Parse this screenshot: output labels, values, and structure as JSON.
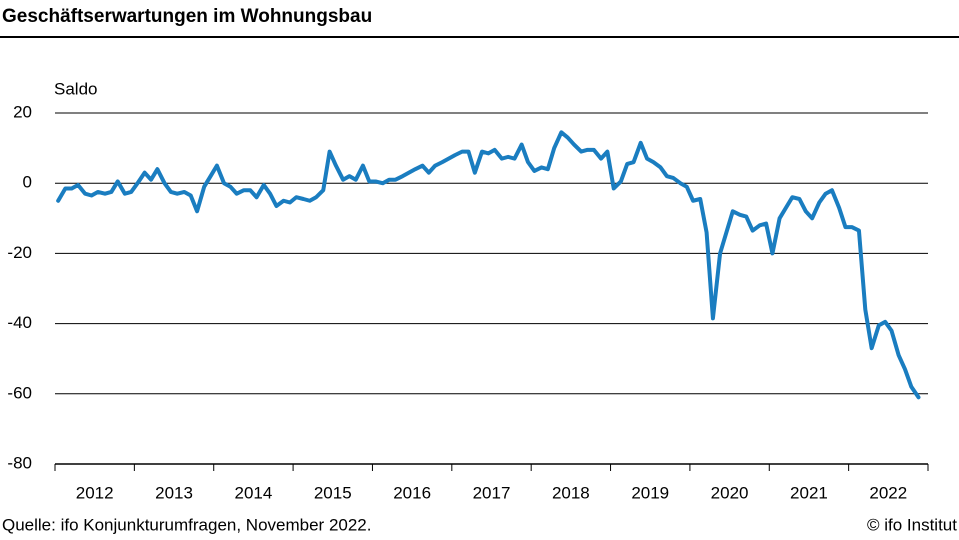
{
  "chart_data": {
    "type": "line",
    "title": "Geschäftserwartungen im Wohnungsbau",
    "y_axis_label": "Saldo",
    "source": "Quelle: ifo Konjunkturumfragen, November 2022.",
    "credit": "© ifo Institut",
    "xlim": [
      2012,
      2023
    ],
    "xticks": [
      2012,
      2013,
      2014,
      2015,
      2016,
      2017,
      2018,
      2019,
      2020,
      2021,
      2022,
      2023
    ],
    "year_labels": [
      2012,
      2013,
      2014,
      2015,
      2016,
      2017,
      2018,
      2019,
      2020,
      2021,
      2022
    ],
    "ylim": [
      -80,
      20
    ],
    "yticks": [
      20,
      0,
      -20,
      -40,
      -60,
      -80
    ],
    "grid": true,
    "x": [
      2012.04,
      2012.13,
      2012.21,
      2012.29,
      2012.38,
      2012.46,
      2012.54,
      2012.63,
      2012.71,
      2012.79,
      2012.88,
      2012.96,
      2013.04,
      2013.13,
      2013.21,
      2013.29,
      2013.38,
      2013.46,
      2013.54,
      2013.63,
      2013.71,
      2013.79,
      2013.88,
      2013.96,
      2014.04,
      2014.13,
      2014.21,
      2014.29,
      2014.38,
      2014.46,
      2014.54,
      2014.63,
      2014.71,
      2014.79,
      2014.88,
      2014.96,
      2015.04,
      2015.13,
      2015.21,
      2015.29,
      2015.38,
      2015.46,
      2015.54,
      2015.63,
      2015.71,
      2015.79,
      2015.88,
      2015.96,
      2016.04,
      2016.13,
      2016.21,
      2016.29,
      2016.38,
      2016.46,
      2016.54,
      2016.63,
      2016.71,
      2016.79,
      2016.88,
      2016.96,
      2017.04,
      2017.13,
      2017.21,
      2017.29,
      2017.38,
      2017.46,
      2017.54,
      2017.63,
      2017.71,
      2017.79,
      2017.88,
      2017.96,
      2018.04,
      2018.13,
      2018.21,
      2018.29,
      2018.38,
      2018.46,
      2018.54,
      2018.63,
      2018.71,
      2018.79,
      2018.88,
      2018.96,
      2019.04,
      2019.13,
      2019.21,
      2019.29,
      2019.38,
      2019.46,
      2019.54,
      2019.63,
      2019.71,
      2019.79,
      2019.88,
      2019.96,
      2020.04,
      2020.13,
      2020.21,
      2020.29,
      2020.38,
      2020.46,
      2020.54,
      2020.63,
      2020.71,
      2020.79,
      2020.88,
      2020.96,
      2021.04,
      2021.13,
      2021.21,
      2021.29,
      2021.38,
      2021.46,
      2021.54,
      2021.63,
      2021.71,
      2021.79,
      2021.88,
      2021.96,
      2022.04,
      2022.13,
      2022.21,
      2022.29,
      2022.38,
      2022.46,
      2022.54,
      2022.63,
      2022.71,
      2022.79,
      2022.88
    ],
    "series": [
      {
        "color": "#1a7dc0",
        "values": [
          -5,
          -1.5,
          -1.5,
          -0.5,
          -3,
          -3.5,
          -2.5,
          -3,
          -2.5,
          0.5,
          -3,
          -2.5,
          0,
          3,
          1,
          4,
          0,
          -2.5,
          -3,
          -2.5,
          -3.5,
          -8,
          -1,
          2,
          5,
          0,
          -1,
          -3,
          -2,
          -2,
          -4,
          -0.5,
          -3,
          -6.5,
          -5,
          -5.5,
          -4,
          -4.5,
          -5,
          -4,
          -2,
          9,
          5,
          1,
          2,
          1,
          5,
          0.5,
          0.5,
          0,
          1,
          1,
          2,
          3,
          4,
          5,
          3,
          5,
          6,
          7,
          8,
          9,
          9,
          3,
          9,
          8.5,
          9.5,
          7,
          7.5,
          7,
          11,
          6,
          3.5,
          4.5,
          4,
          10,
          14.5,
          13,
          11,
          9,
          9.5,
          9.5,
          7,
          9,
          -1.5,
          0.5,
          5.5,
          6,
          11.5,
          7,
          6,
          4.5,
          2,
          1.5,
          0,
          -1,
          -5,
          -4.5,
          -14,
          -38.5,
          -20,
          -14,
          -8,
          -9,
          -9.5,
          -13.5,
          -12,
          -11.5,
          -20,
          -10,
          -7,
          -4,
          -4.5,
          -8,
          -10,
          -5.5,
          -3,
          -2,
          -7,
          -12.5,
          -12.5,
          -13.5,
          -36,
          -47,
          -40.5,
          -39.5,
          -42,
          -49,
          -53,
          -58,
          -61
        ]
      }
    ]
  }
}
